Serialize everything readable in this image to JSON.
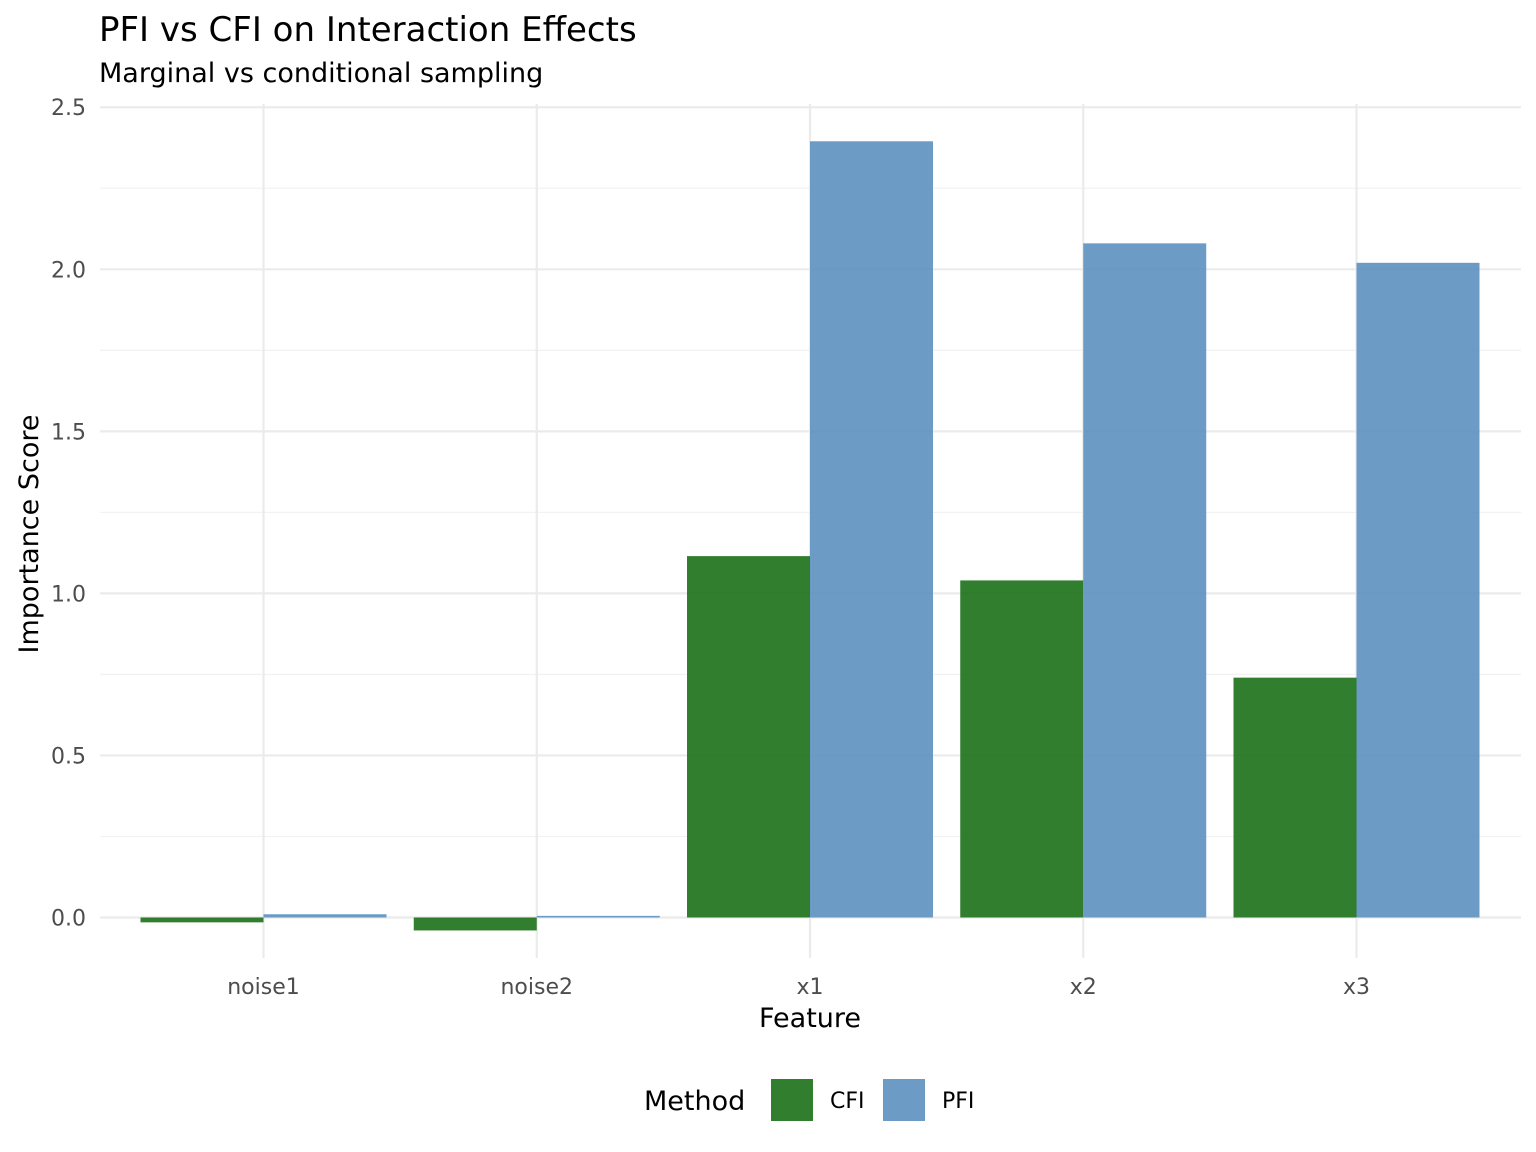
{
  "chart_data": {
    "type": "bar",
    "title": "PFI vs CFI on Interaction Effects",
    "subtitle": "Marginal vs conditional sampling",
    "xlabel": "Feature",
    "ylabel": "Importance Score",
    "categories": [
      "noise1",
      "noise2",
      "x1",
      "x2",
      "x3"
    ],
    "series": [
      {
        "name": "CFI",
        "color": "#1a7017",
        "values": [
          -0.015,
          -0.04,
          1.115,
          1.04,
          0.74
        ]
      },
      {
        "name": "PFI",
        "color": "#5c91c0",
        "values": [
          0.01,
          0.005,
          2.395,
          2.08,
          2.02
        ]
      }
    ],
    "ylim": [
      -0.125,
      2.51
    ],
    "yticks": [
      0.0,
      0.5,
      1.0,
      1.5,
      2.0,
      2.5
    ],
    "ytick_labels": [
      "0.0",
      "0.5",
      "1.0",
      "1.5",
      "2.0",
      "2.5"
    ],
    "grid": true,
    "legend": {
      "title": "Method",
      "position": "bottom"
    }
  }
}
